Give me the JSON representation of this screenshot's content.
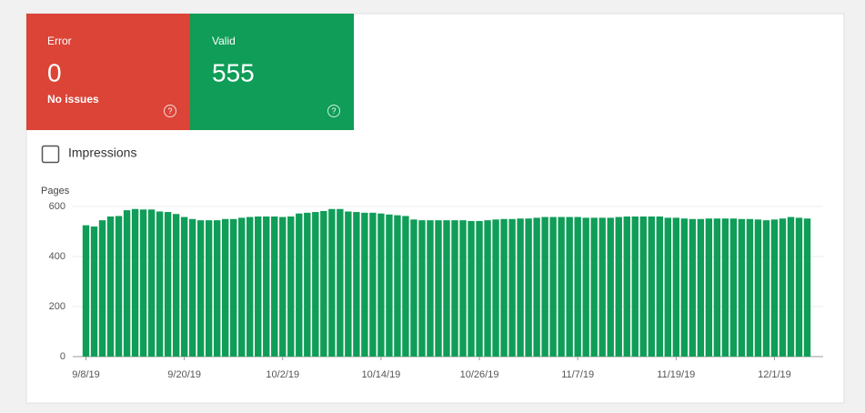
{
  "cards": [
    {
      "label": "Error",
      "value": 0,
      "note": "No issues",
      "color": "#db4437"
    },
    {
      "label": "Valid",
      "value": 555,
      "color": "#0f9d58"
    }
  ],
  "toggle": {
    "label": "Impressions"
  },
  "chart_data": {
    "type": "bar",
    "y_label": "Pages",
    "color": "#0f9d58",
    "categories": [
      "9/8/19",
      null,
      null,
      null,
      null,
      null,
      null,
      null,
      null,
      null,
      null,
      null,
      "9/20/19",
      null,
      null,
      null,
      null,
      null,
      null,
      null,
      null,
      null,
      null,
      null,
      "10/2/19",
      null,
      null,
      null,
      null,
      null,
      null,
      null,
      null,
      null,
      null,
      null,
      "10/14/19",
      null,
      null,
      null,
      null,
      null,
      null,
      null,
      null,
      null,
      null,
      null,
      "10/26/19",
      null,
      null,
      null,
      null,
      null,
      null,
      null,
      null,
      null,
      null,
      null,
      "11/7/19",
      null,
      null,
      null,
      null,
      null,
      null,
      null,
      null,
      null,
      null,
      null,
      "11/19/19",
      null,
      null,
      null,
      null,
      null,
      null,
      null,
      null,
      null,
      null,
      null,
      "12/1/19",
      null,
      null,
      null,
      null
    ],
    "values": [
      525,
      520,
      545,
      560,
      562,
      585,
      590,
      588,
      588,
      580,
      578,
      570,
      558,
      550,
      545,
      545,
      545,
      550,
      550,
      555,
      558,
      560,
      560,
      560,
      558,
      560,
      572,
      575,
      578,
      582,
      590,
      590,
      580,
      578,
      575,
      575,
      572,
      568,
      565,
      562,
      548,
      545,
      545,
      545,
      545,
      545,
      545,
      542,
      542,
      545,
      548,
      550,
      550,
      552,
      552,
      555,
      558,
      558,
      558,
      558,
      558,
      555,
      555,
      555,
      555,
      558,
      560,
      560,
      560,
      560,
      560,
      555,
      555,
      552,
      550,
      550,
      552,
      552,
      552,
      552,
      550,
      550,
      548,
      545,
      548,
      552,
      558,
      555,
      552
    ],
    "ylim": [
      0,
      600
    ],
    "yticks": [
      0,
      200,
      400,
      600
    ],
    "grid": true
  }
}
